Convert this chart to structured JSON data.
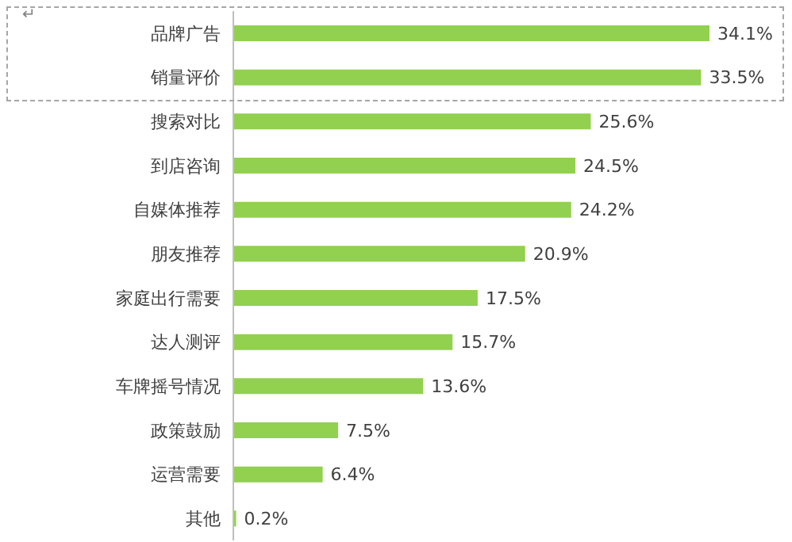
{
  "chart_data": {
    "type": "bar",
    "orientation": "horizontal",
    "categories": [
      "品牌广告",
      "销量评价",
      "搜索对比",
      "到店咨询",
      "自媒体推荐",
      "朋友推荐",
      "家庭出行需要",
      "达人测评",
      "车牌摇号情况",
      "政策鼓励",
      "运营需要",
      "其他"
    ],
    "values": [
      34.1,
      33.5,
      25.6,
      24.5,
      24.2,
      20.9,
      17.5,
      15.7,
      13.6,
      7.5,
      6.4,
      0.2
    ],
    "value_labels": [
      "34.1%",
      "33.5%",
      "25.6%",
      "24.5%",
      "24.2%",
      "20.9%",
      "17.5%",
      "15.7%",
      "13.6%",
      "7.5%",
      "6.4%",
      "0.2%"
    ],
    "color": "#92d050",
    "annotations": [
      "↵"
    ]
  }
}
